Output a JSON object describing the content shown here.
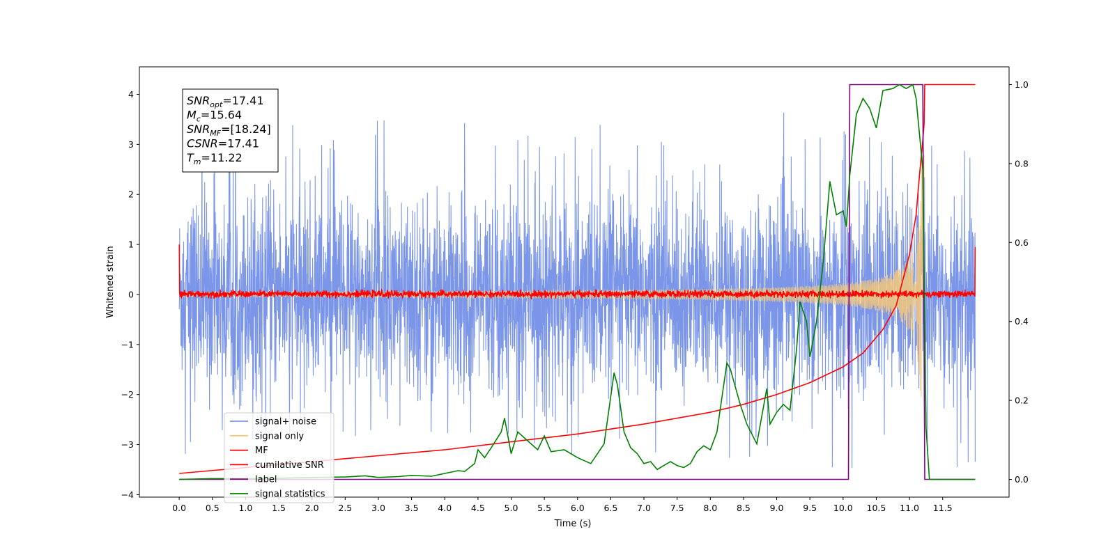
{
  "chart_data": {
    "type": "line",
    "xlabel": "Time (s)",
    "ylabel": "Whitened strain",
    "xlim": [
      -0.6,
      12.5
    ],
    "ylim": [
      -4.05,
      4.55
    ],
    "y2lim": [
      -0.045,
      1.045
    ],
    "x_ticks": [
      0.0,
      0.5,
      1.0,
      1.5,
      2.0,
      2.5,
      3.0,
      3.5,
      4.0,
      4.5,
      5.0,
      5.5,
      6.0,
      6.5,
      7.0,
      7.5,
      8.0,
      8.5,
      9.0,
      9.5,
      10.0,
      10.5,
      11.0,
      11.5
    ],
    "x_tick_labels": [
      "0.0",
      "0.5",
      "1.0",
      "1.5",
      "2.0",
      "2.5",
      "3.0",
      "3.5",
      "4.0",
      "4.5",
      "5.0",
      "5.5",
      "6.0",
      "6.5",
      "7.0",
      "7.5",
      "8.0",
      "8.5",
      "9.0",
      "9.5",
      "10.0",
      "10.5",
      "11.0",
      "11.5"
    ],
    "y_ticks": [
      -4,
      -3,
      -2,
      -1,
      0,
      1,
      2,
      3,
      4
    ],
    "y_tick_labels": [
      "−4",
      "−3",
      "−2",
      "−1",
      "0",
      "1",
      "2",
      "3",
      "4"
    ],
    "y2_ticks": [
      0.0,
      0.2,
      0.4,
      0.6,
      0.8,
      1.0
    ],
    "y2_tick_labels": [
      "0.0",
      "0.2",
      "0.4",
      "0.6",
      "0.8",
      "1.0"
    ],
    "grid": false,
    "legend_position": "lower-left",
    "annotation": [
      {
        "name": "SNR",
        "sub": "opt",
        "value": "=17.41"
      },
      {
        "name": "M",
        "sub": "c",
        "value": "=15.64"
      },
      {
        "name": "SNR",
        "sub": "MF",
        "value": "=[18.24]"
      },
      {
        "name": "CSNR",
        "sub": "",
        "value": "=17.41"
      },
      {
        "name": "T",
        "sub": "m",
        "value": "=11.22"
      }
    ],
    "series": [
      {
        "name": "signal+ noise",
        "color": "#7b96e8",
        "axis": "left",
        "kind": "noise",
        "x_range": [
          0.0,
          11.99
        ],
        "envelope": [
          -2.5,
          2.5
        ],
        "spikes_max": 4.15,
        "spikes_min": -3.65
      },
      {
        "name": "signal only",
        "color": "#f5c87a",
        "axis": "left",
        "kind": "chirp",
        "x_range": [
          0.0,
          11.22
        ],
        "amplitude_at_end": 3.0,
        "merger_time": 11.22
      },
      {
        "name": "MF",
        "color": "#ff0000",
        "axis": "left",
        "kind": "noise",
        "x_range": [
          0.0,
          11.99
        ],
        "envelope": [
          -0.08,
          0.1
        ],
        "start_value": 1.0,
        "end_value": 0.95
      },
      {
        "name": "cumilative SNR",
        "color": "#ff0000",
        "axis": "right",
        "points": [
          [
            0.0,
            0.015
          ],
          [
            1.0,
            0.03
          ],
          [
            2.0,
            0.045
          ],
          [
            3.0,
            0.06
          ],
          [
            4.0,
            0.075
          ],
          [
            5.0,
            0.095
          ],
          [
            6.0,
            0.115
          ],
          [
            7.0,
            0.14
          ],
          [
            8.0,
            0.17
          ],
          [
            8.5,
            0.19
          ],
          [
            9.0,
            0.215
          ],
          [
            9.5,
            0.245
          ],
          [
            10.0,
            0.285
          ],
          [
            10.3,
            0.32
          ],
          [
            10.6,
            0.38
          ],
          [
            10.8,
            0.44
          ],
          [
            11.0,
            0.57
          ],
          [
            11.1,
            0.67
          ],
          [
            11.15,
            0.77
          ],
          [
            11.2,
            0.86
          ],
          [
            11.22,
            0.9
          ],
          [
            11.23,
            1.0
          ],
          [
            11.99,
            1.0
          ]
        ]
      },
      {
        "name": "label",
        "color": "#800080",
        "axis": "right",
        "points": [
          [
            0.0,
            0.0
          ],
          [
            10.08,
            0.0
          ],
          [
            10.1,
            1.0
          ],
          [
            11.2,
            1.0
          ],
          [
            11.23,
            0.0
          ],
          [
            11.99,
            0.0
          ]
        ]
      },
      {
        "name": "signal statistics",
        "color": "#008000",
        "axis": "right",
        "points": [
          [
            0.0,
            0.0
          ],
          [
            0.5,
            0.002
          ],
          [
            1.0,
            0.002
          ],
          [
            1.5,
            0.003
          ],
          [
            2.0,
            0.005
          ],
          [
            2.5,
            0.006
          ],
          [
            2.8,
            0.009
          ],
          [
            3.0,
            0.005
          ],
          [
            3.3,
            0.007
          ],
          [
            3.5,
            0.01
          ],
          [
            3.8,
            0.008
          ],
          [
            4.0,
            0.015
          ],
          [
            4.2,
            0.022
          ],
          [
            4.3,
            0.02
          ],
          [
            4.45,
            0.04
          ],
          [
            4.5,
            0.075
          ],
          [
            4.6,
            0.055
          ],
          [
            4.7,
            0.08
          ],
          [
            4.85,
            0.12
          ],
          [
            4.9,
            0.155
          ],
          [
            5.0,
            0.065
          ],
          [
            5.1,
            0.12
          ],
          [
            5.3,
            0.09
          ],
          [
            5.4,
            0.075
          ],
          [
            5.5,
            0.11
          ],
          [
            5.6,
            0.07
          ],
          [
            5.8,
            0.075
          ],
          [
            6.0,
            0.055
          ],
          [
            6.2,
            0.04
          ],
          [
            6.4,
            0.09
          ],
          [
            6.55,
            0.27
          ],
          [
            6.6,
            0.24
          ],
          [
            6.7,
            0.12
          ],
          [
            6.8,
            0.08
          ],
          [
            6.9,
            0.065
          ],
          [
            7.0,
            0.04
          ],
          [
            7.1,
            0.045
          ],
          [
            7.2,
            0.025
          ],
          [
            7.3,
            0.035
          ],
          [
            7.4,
            0.045
          ],
          [
            7.5,
            0.035
          ],
          [
            7.6,
            0.03
          ],
          [
            7.7,
            0.04
          ],
          [
            7.8,
            0.07
          ],
          [
            7.9,
            0.085
          ],
          [
            8.0,
            0.075
          ],
          [
            8.1,
            0.12
          ],
          [
            8.25,
            0.295
          ],
          [
            8.3,
            0.28
          ],
          [
            8.45,
            0.19
          ],
          [
            8.55,
            0.14
          ],
          [
            8.7,
            0.09
          ],
          [
            8.85,
            0.23
          ],
          [
            8.9,
            0.14
          ],
          [
            9.0,
            0.17
          ],
          [
            9.1,
            0.19
          ],
          [
            9.2,
            0.175
          ],
          [
            9.3,
            0.33
          ],
          [
            9.35,
            0.45
          ],
          [
            9.45,
            0.4
          ],
          [
            9.5,
            0.31
          ],
          [
            9.6,
            0.4
          ],
          [
            9.7,
            0.55
          ],
          [
            9.8,
            0.755
          ],
          [
            9.9,
            0.67
          ],
          [
            10.0,
            0.68
          ],
          [
            10.05,
            0.64
          ],
          [
            10.1,
            0.77
          ],
          [
            10.2,
            0.925
          ],
          [
            10.3,
            0.965
          ],
          [
            10.4,
            0.94
          ],
          [
            10.5,
            0.89
          ],
          [
            10.6,
            0.985
          ],
          [
            10.75,
            0.99
          ],
          [
            10.85,
            1.0
          ],
          [
            10.95,
            0.99
          ],
          [
            11.05,
            1.0
          ],
          [
            11.1,
            0.965
          ],
          [
            11.2,
            0.785
          ],
          [
            11.25,
            0.13
          ],
          [
            11.3,
            0.0
          ],
          [
            11.99,
            0.0
          ]
        ]
      }
    ]
  }
}
